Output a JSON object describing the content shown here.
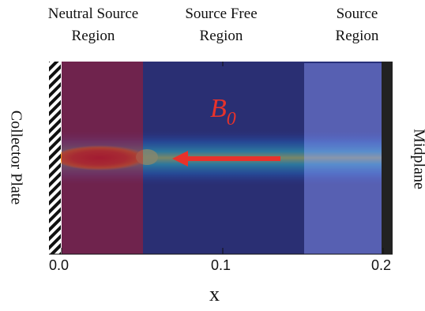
{
  "regions": {
    "neutral_source": "Neutral Source\nRegion",
    "source_free": "Source Free\nRegion",
    "source": "Source\nRegion"
  },
  "side_labels": {
    "left": "Collector Plate",
    "right": "Midplane"
  },
  "field_label": {
    "base": "B",
    "sub": "0"
  },
  "axis": {
    "x_label": "x",
    "ticks": [
      "0.0",
      "0.1",
      "0.2"
    ]
  },
  "colors": {
    "neutral_source_overlay": "#8a1f3c",
    "source_free_overlay": "#2b2f6e",
    "source_overlay": "#6a73c8",
    "arrow": "#e8322b",
    "plate_hatch": "#111111",
    "midplane_wall": "#222222"
  }
}
